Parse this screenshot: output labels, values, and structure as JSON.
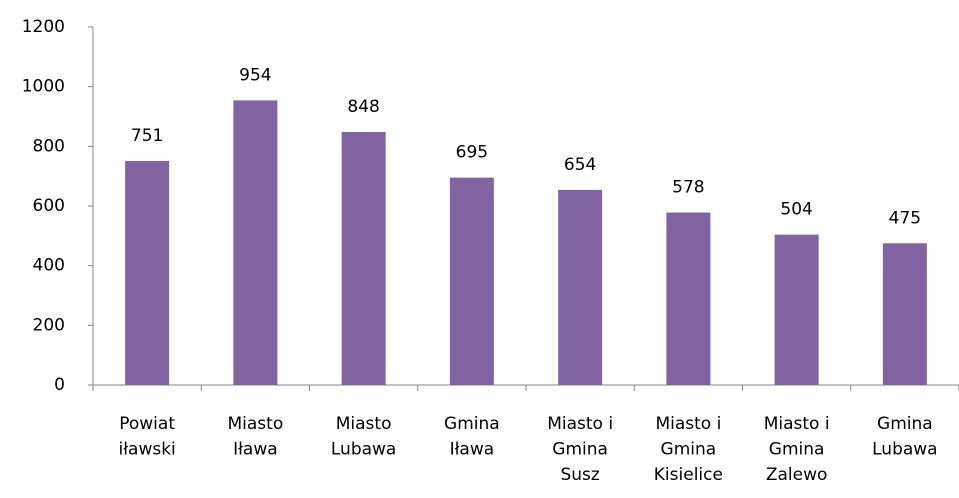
{
  "chart_data": {
    "type": "bar",
    "categories": [
      "Powiat iławski",
      "Miasto Iława",
      "Miasto Lubawa",
      "Gmina Iława",
      "Miasto i Gmina Susz",
      "Miasto i Gmina Kisielice",
      "Miasto i Gmina Zalewo",
      "Gmina Lubawa"
    ],
    "values": [
      751,
      954,
      848,
      695,
      654,
      578,
      504,
      475
    ],
    "color": "#8064a2",
    "ylim": [
      0,
      1200
    ],
    "yticks": [
      0,
      200,
      400,
      600,
      800,
      1000,
      1200
    ],
    "grid": false
  }
}
